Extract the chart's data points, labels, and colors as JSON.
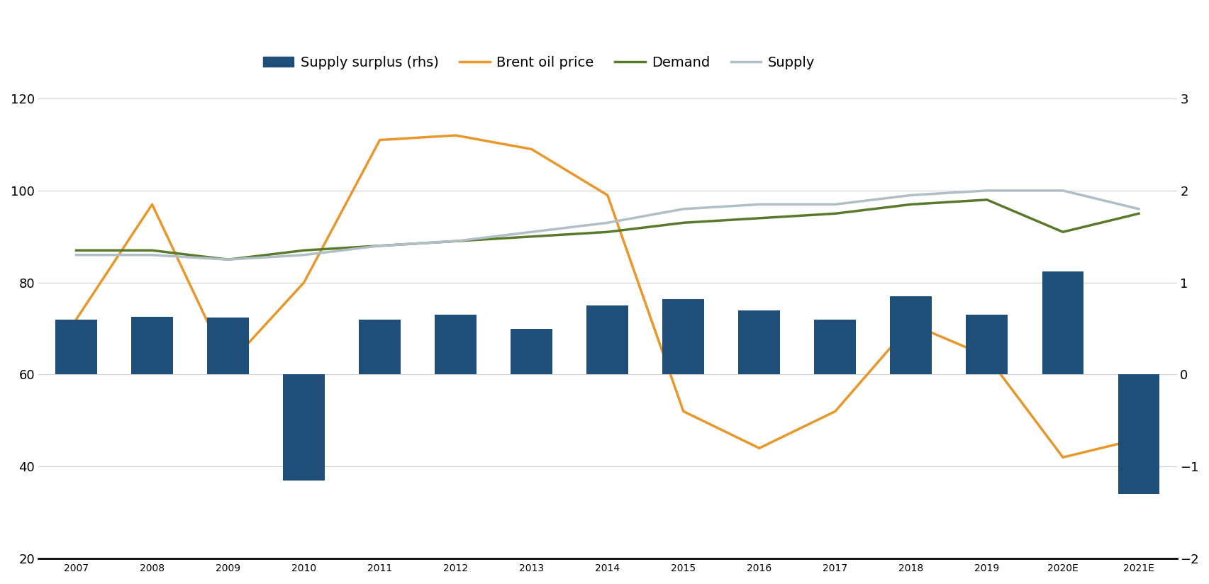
{
  "years": [
    "2007",
    "2008",
    "2009",
    "2010",
    "2011",
    "2012",
    "2013",
    "2014",
    "2015",
    "2016",
    "2017",
    "2018",
    "2019",
    "2020E",
    "2021E"
  ],
  "bar_values": [
    0.6,
    0.63,
    0.62,
    -1.15,
    0.6,
    0.65,
    0.5,
    0.75,
    0.82,
    0.7,
    0.6,
    0.85,
    0.65,
    1.12,
    -1.3
  ],
  "brent_price": [
    72,
    97,
    62,
    80,
    111,
    112,
    109,
    99,
    52,
    44,
    52,
    71,
    64,
    42,
    46
  ],
  "demand": [
    87,
    87,
    85,
    87,
    88,
    89,
    90,
    91,
    93,
    94,
    95,
    97,
    98,
    91,
    95
  ],
  "supply": [
    86,
    86,
    85,
    86,
    88,
    89,
    91,
    93,
    96,
    97,
    97,
    99,
    100,
    100,
    96
  ],
  "bar_color": "#1f4e79",
  "brent_color": "#e8972a",
  "demand_color": "#5a7a2b",
  "supply_color": "#b0bec5",
  "background_color": "#ffffff",
  "ylim_left": [
    20,
    120
  ],
  "ylim_right": [
    -2,
    3
  ],
  "yticks_left": [
    20,
    40,
    60,
    80,
    100,
    120
  ],
  "yticks_right": [
    -2,
    -1,
    0,
    1,
    2,
    3
  ],
  "grid_color": "#d0d0d0",
  "figsize": [
    17.06,
    8.24
  ],
  "dpi": 100
}
